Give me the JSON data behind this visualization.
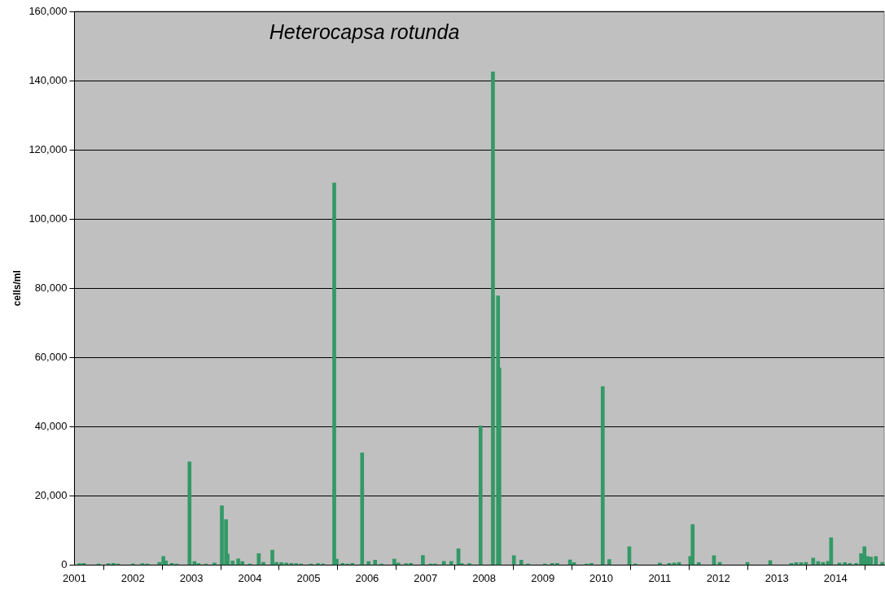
{
  "chart_data": {
    "type": "bar",
    "title": "Heterocapsa rotunda",
    "ylabel": "cells/ml",
    "color": "#339966",
    "x": [
      "2001-02-01",
      "2001-03-01",
      "2001-06-01",
      "2001-08-01",
      "2001-09-01",
      "2001-10-01",
      "2002-01-01",
      "2002-03-01",
      "2002-04-01",
      "2002-06-15",
      "2002-07-10",
      "2002-07-25",
      "2002-09-01",
      "2002-10-01",
      "2002-12-20",
      "2003-01-20",
      "2003-02-15",
      "2003-04-01",
      "2003-05-25",
      "2003-07-10",
      "2003-08-05",
      "2003-08-15",
      "2003-09-15",
      "2003-10-20",
      "2003-11-15",
      "2004-01-01",
      "2004-02-25",
      "2004-03-25",
      "2004-05-20",
      "2004-06-15",
      "2004-07-15",
      "2004-08-15",
      "2004-09-15",
      "2004-10-15",
      "2004-11-15",
      "2005-01-15",
      "2005-03-01",
      "2005-04-01",
      "2005-06-10",
      "2005-06-25",
      "2005-08-01",
      "2005-09-01",
      "2005-10-01",
      "2005-12-01",
      "2006-01-10",
      "2006-02-20",
      "2006-04-01",
      "2006-06-20",
      "2006-07-15",
      "2006-09-01",
      "2006-10-01",
      "2006-12-15",
      "2007-02-01",
      "2007-03-01",
      "2007-04-25",
      "2007-06-10",
      "2007-07-25",
      "2007-08-15",
      "2007-10-01",
      "2007-12-10",
      "2008-02-25",
      "2008-03-28",
      "2008-04-05",
      "2008-07-05",
      "2008-08-20",
      "2008-10-01",
      "2009-01-15",
      "2009-03-01",
      "2009-04-01",
      "2009-06-20",
      "2009-07-15",
      "2009-10-01",
      "2009-11-01",
      "2010-01-10",
      "2010-02-20",
      "2010-06-25",
      "2010-08-01",
      "2011-01-01",
      "2011-03-01",
      "2011-04-01",
      "2011-05-01",
      "2011-07-10",
      "2011-07-25",
      "2011-09-01",
      "2011-12-05",
      "2012-01-10",
      "2012-07-01",
      "2012-11-20",
      "2013-04-01",
      "2013-05-01",
      "2013-06-01",
      "2013-07-01",
      "2013-08-15",
      "2013-09-15",
      "2013-10-15",
      "2013-11-15",
      "2013-12-05",
      "2014-01-25",
      "2014-03-01",
      "2014-04-01",
      "2014-05-10",
      "2014-06-10",
      "2014-07-01",
      "2014-07-20",
      "2014-08-10",
      "2014-09-10",
      "2014-10-20"
    ],
    "values": [
      400,
      500,
      300,
      400,
      500,
      300,
      300,
      400,
      300,
      800,
      2500,
      1200,
      500,
      300,
      29800,
      1000,
      400,
      300,
      600,
      17100,
      13100,
      3200,
      1200,
      1800,
      1000,
      300,
      3300,
      800,
      4300,
      800,
      700,
      600,
      500,
      400,
      300,
      300,
      400,
      300,
      110400,
      1700,
      500,
      300,
      500,
      32400,
      1000,
      1400,
      300,
      1700,
      600,
      400,
      500,
      2800,
      300,
      300,
      1100,
      1100,
      4700,
      400,
      400,
      40200,
      142500,
      77800,
      57000,
      2700,
      1400,
      300,
      300,
      500,
      500,
      1500,
      700,
      300,
      500,
      51600,
      1600,
      5300,
      300,
      600,
      500,
      600,
      800,
      2500,
      11700,
      700,
      2700,
      800,
      800,
      1300,
      500,
      700,
      700,
      800,
      2000,
      1000,
      800,
      1100,
      7900,
      600,
      700,
      500,
      500,
      3300,
      5300,
      2500,
      2300,
      2500,
      800
    ],
    "xlim": [
      "2001-01-01",
      "2014-11-01"
    ],
    "xticks": [
      "2001",
      "2002",
      "2003",
      "2004",
      "2005",
      "2006",
      "2007",
      "2008",
      "2009",
      "2010",
      "2011",
      "2012",
      "2013",
      "2014"
    ],
    "ylim": [
      0,
      160000
    ],
    "yticks": [
      0,
      {
        "value": 20000,
        "label": "20,000"
      },
      {
        "value": 40000,
        "label": "40,000"
      },
      {
        "value": 60000,
        "label": "60,000"
      },
      {
        "value": 80000,
        "label": "80,000"
      },
      {
        "value": 100000,
        "label": "100,000"
      },
      {
        "value": 120000,
        "label": "120,000"
      },
      {
        "value": 140000,
        "label": "140,000"
      },
      {
        "value": 160000,
        "label": "160,000"
      }
    ],
    "grid": "y"
  }
}
